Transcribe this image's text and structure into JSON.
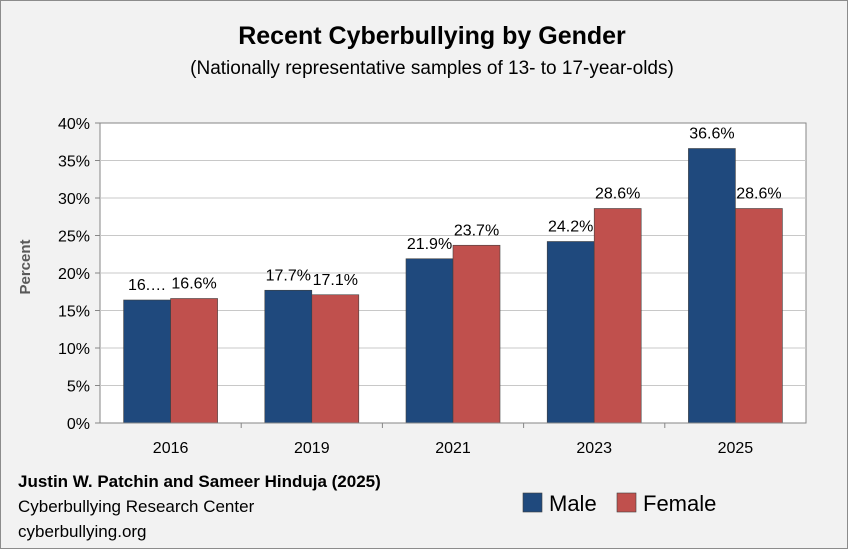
{
  "chart_data": {
    "type": "bar",
    "title": "Recent Cyberbullying by Gender",
    "subtitle": "(Nationally representative samples of 13- to 17-year-olds)",
    "ylabel": "Percent",
    "xlabel": "",
    "categories": [
      "2016",
      "2019",
      "2021",
      "2023",
      "2025"
    ],
    "ylim": [
      0,
      40
    ],
    "yticks": [
      0,
      5,
      10,
      15,
      20,
      25,
      30,
      35,
      40
    ],
    "ytick_labels": [
      "0%",
      "5%",
      "10%",
      "15%",
      "20%",
      "25%",
      "30%",
      "35%",
      "40%"
    ],
    "grid": true,
    "legend_position": "bottom-right",
    "series": [
      {
        "name": "Male",
        "color": "#1f497d",
        "values": [
          16.4,
          17.7,
          21.9,
          24.2,
          36.6
        ],
        "labels": [
          "16.…",
          "17.7%",
          "21.9%",
          "24.2%",
          "36.6%"
        ]
      },
      {
        "name": "Female",
        "color": "#c0504d",
        "values": [
          16.6,
          17.1,
          23.7,
          28.6,
          28.6
        ],
        "labels": [
          "16.6%",
          "17.1%",
          "23.7%",
          "28.6%",
          "28.6%"
        ]
      }
    ]
  },
  "credits": {
    "authors": "Justin W. Patchin and Sameer Hinduja (2025)",
    "organization": "Cyberbullying Research Center",
    "website": "cyberbullying.org"
  }
}
